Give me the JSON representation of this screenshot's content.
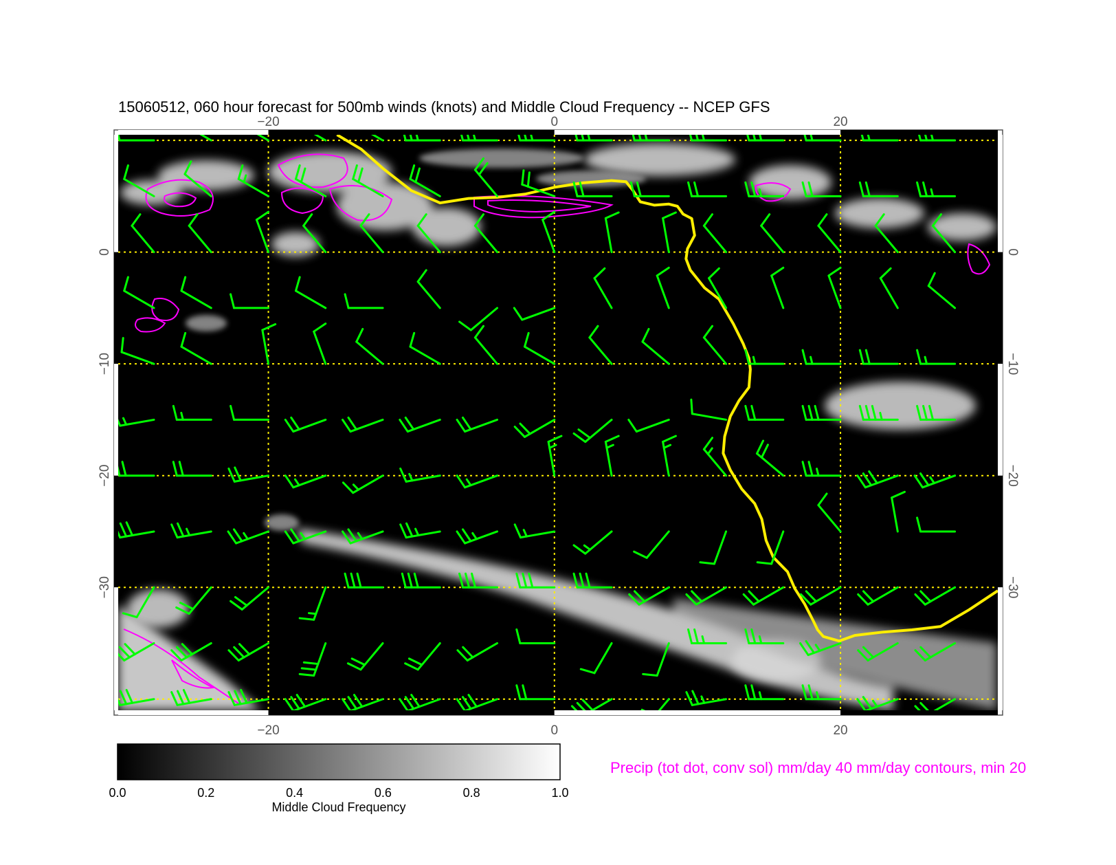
{
  "map": {
    "title": "15060512, 060 hour forecast for 500mb winds (knots) and Middle Cloud Frequency -- NCEP GFS",
    "lon_ticks": [
      "−20",
      "0",
      "20"
    ],
    "lat_ticks": [
      "0",
      "−10",
      "−20",
      "−30"
    ],
    "lon_range": [
      -30.5,
      31
    ],
    "lat_range": [
      -41,
      10.5
    ],
    "grid_lons": [
      -20,
      0,
      20
    ],
    "grid_lats": [
      10,
      0,
      -10,
      -20,
      -30,
      -40
    ],
    "colors": {
      "background": "#000000",
      "wind_barbs": "#00ff00",
      "precip_contours": "#ff00ff",
      "coastline": "#ffee00",
      "grid": "#ffee00"
    }
  },
  "colorbar": {
    "label": "Middle Cloud Frequency",
    "ticks": [
      "0.0",
      "0.2",
      "0.4",
      "0.6",
      "0.8",
      "1.0"
    ],
    "range": [
      0,
      1
    ]
  },
  "precip_note": {
    "text": "Precip (tot dot, conv sol) mm/day 40 mm/day contours, min 20",
    "color": "#ff00ff"
  },
  "coastline_points": [
    [
      -15.2,
      10.5
    ],
    [
      -13.5,
      9.2
    ],
    [
      -12,
      7.5
    ],
    [
      -10,
      5.5
    ],
    [
      -8,
      4.4
    ],
    [
      -6,
      4.8
    ],
    [
      -4,
      4.9
    ],
    [
      -2,
      5.2
    ],
    [
      0,
      5.8
    ],
    [
      2,
      6.2
    ],
    [
      4,
      6.4
    ],
    [
      5,
      6.3
    ],
    [
      5.5,
      5.5
    ],
    [
      6,
      4.5
    ],
    [
      7,
      4.2
    ],
    [
      8,
      4.3
    ],
    [
      8.6,
      4.1
    ],
    [
      9,
      3.4
    ],
    [
      9.6,
      3.0
    ],
    [
      9.8,
      1.5
    ],
    [
      9.3,
      0.3
    ],
    [
      9.2,
      -0.6
    ],
    [
      9.5,
      -1.6
    ],
    [
      10.5,
      -3.2
    ],
    [
      11.5,
      -4.2
    ],
    [
      12.5,
      -6.4
    ],
    [
      13.2,
      -8.2
    ],
    [
      13.6,
      -9.5
    ],
    [
      13.7,
      -10.5
    ],
    [
      13.6,
      -12.1
    ],
    [
      12.9,
      -13.3
    ],
    [
      12.3,
      -14.7
    ],
    [
      11.9,
      -16.5
    ],
    [
      11.8,
      -18
    ],
    [
      12.3,
      -19.5
    ],
    [
      13.1,
      -21.2
    ],
    [
      14.0,
      -22.5
    ],
    [
      14.5,
      -23.9
    ],
    [
      14.8,
      -25.8
    ],
    [
      15.3,
      -27.3
    ],
    [
      16.3,
      -28.6
    ],
    [
      16.8,
      -30.1
    ],
    [
      17.5,
      -31.5
    ],
    [
      18.1,
      -33
    ],
    [
      18.4,
      -33.8
    ],
    [
      18.8,
      -34.4
    ],
    [
      19.9,
      -34.8
    ],
    [
      21,
      -34.3
    ],
    [
      23,
      -34
    ],
    [
      25,
      -33.8
    ],
    [
      27,
      -33.5
    ],
    [
      29,
      -32
    ],
    [
      31,
      -30.3
    ]
  ],
  "wind_barbs": [
    [
      -28,
      10,
      10,
      270
    ],
    [
      -24,
      10,
      10,
      300
    ],
    [
      -20,
      10,
      10,
      300
    ],
    [
      -16,
      10,
      15,
      300
    ],
    [
      -12,
      10,
      15,
      300
    ],
    [
      -8,
      10,
      25,
      270
    ],
    [
      -4,
      10,
      30,
      270
    ],
    [
      0,
      10,
      25,
      270
    ],
    [
      4,
      10,
      25,
      270
    ],
    [
      8,
      10,
      30,
      270
    ],
    [
      12,
      10,
      30,
      270
    ],
    [
      16,
      10,
      25,
      270
    ],
    [
      20,
      10,
      20,
      270
    ],
    [
      24,
      10,
      20,
      270
    ],
    [
      28,
      10,
      25,
      270
    ],
    [
      -28,
      5,
      10,
      300
    ],
    [
      -24,
      5,
      10,
      310
    ],
    [
      -20,
      5,
      15,
      300
    ],
    [
      -16,
      5,
      20,
      300
    ],
    [
      -12,
      5,
      20,
      300
    ],
    [
      -8,
      5,
      20,
      300
    ],
    [
      -4,
      5,
      20,
      320
    ],
    [
      0,
      5,
      20,
      290
    ],
    [
      4,
      5,
      20,
      270
    ],
    [
      8,
      5,
      20,
      270
    ],
    [
      12,
      5,
      20,
      270
    ],
    [
      16,
      5,
      25,
      270
    ],
    [
      20,
      5,
      20,
      270
    ],
    [
      24,
      5,
      20,
      270
    ],
    [
      28,
      5,
      25,
      270
    ],
    [
      -28,
      0,
      10,
      320
    ],
    [
      -24,
      0,
      10,
      320
    ],
    [
      -20,
      0,
      10,
      340
    ],
    [
      -16,
      0,
      10,
      320
    ],
    [
      -12,
      0,
      10,
      320
    ],
    [
      -8,
      0,
      10,
      320
    ],
    [
      -4,
      0,
      10,
      320
    ],
    [
      0,
      0,
      10,
      340
    ],
    [
      4,
      0,
      10,
      350
    ],
    [
      8,
      0,
      10,
      350
    ],
    [
      12,
      0,
      10,
      320
    ],
    [
      16,
      0,
      10,
      320
    ],
    [
      20,
      0,
      10,
      320
    ],
    [
      24,
      0,
      10,
      320
    ],
    [
      28,
      0,
      10,
      320
    ],
    [
      -28,
      -5,
      10,
      300
    ],
    [
      -24,
      -5,
      10,
      300
    ],
    [
      -20,
      -5,
      10,
      270
    ],
    [
      -16,
      -5,
      10,
      300
    ],
    [
      -12,
      -5,
      10,
      270
    ],
    [
      -8,
      -5,
      10,
      320
    ],
    [
      -4,
      -5,
      10,
      230
    ],
    [
      0,
      -5,
      10,
      250
    ],
    [
      4,
      -5,
      10,
      330
    ],
    [
      8,
      -5,
      10,
      340
    ],
    [
      12,
      -5,
      10,
      330
    ],
    [
      16,
      -5,
      10,
      340
    ],
    [
      20,
      -5,
      10,
      340
    ],
    [
      24,
      -5,
      10,
      330
    ],
    [
      28,
      -5,
      10,
      310
    ],
    [
      -28,
      -10,
      10,
      290
    ],
    [
      -24,
      -10,
      10,
      300
    ],
    [
      -20,
      -10,
      10,
      350
    ],
    [
      -16,
      -10,
      10,
      340
    ],
    [
      -12,
      -10,
      10,
      310
    ],
    [
      -8,
      -10,
      10,
      300
    ],
    [
      -4,
      -10,
      10,
      320
    ],
    [
      0,
      -10,
      10,
      300
    ],
    [
      4,
      -10,
      10,
      320
    ],
    [
      8,
      -10,
      10,
      310
    ],
    [
      12,
      -10,
      10,
      320
    ],
    [
      16,
      -10,
      15,
      270
    ],
    [
      20,
      -10,
      15,
      270
    ],
    [
      24,
      -10,
      20,
      270
    ],
    [
      28,
      -10,
      15,
      270
    ],
    [
      -28,
      -15,
      15,
      260
    ],
    [
      -24,
      -15,
      15,
      270
    ],
    [
      -20,
      -15,
      10,
      270
    ],
    [
      -16,
      -15,
      20,
      250
    ],
    [
      -12,
      -15,
      20,
      250
    ],
    [
      -8,
      -15,
      20,
      250
    ],
    [
      -4,
      -15,
      20,
      250
    ],
    [
      0,
      -15,
      20,
      240
    ],
    [
      4,
      -15,
      20,
      230
    ],
    [
      8,
      -15,
      10,
      250
    ],
    [
      12,
      -15,
      10,
      280
    ],
    [
      16,
      -15,
      20,
      270
    ],
    [
      20,
      -15,
      30,
      270
    ],
    [
      24,
      -15,
      35,
      270
    ],
    [
      28,
      -15,
      30,
      270
    ],
    [
      -28,
      -20,
      20,
      270
    ],
    [
      -24,
      -20,
      20,
      270
    ],
    [
      -20,
      -20,
      20,
      260
    ],
    [
      -16,
      -20,
      15,
      250
    ],
    [
      -12,
      -20,
      15,
      240
    ],
    [
      -8,
      -20,
      15,
      260
    ],
    [
      -4,
      -20,
      15,
      250
    ],
    [
      0,
      -20,
      15,
      350
    ],
    [
      4,
      -20,
      15,
      350
    ],
    [
      8,
      -20,
      15,
      350
    ],
    [
      12,
      -20,
      15,
      320
    ],
    [
      16,
      -20,
      20,
      310
    ],
    [
      20,
      -20,
      25,
      270
    ],
    [
      24,
      -20,
      30,
      250
    ],
    [
      28,
      -20,
      25,
      250
    ],
    [
      -28,
      -25,
      30,
      260
    ],
    [
      -24,
      -25,
      25,
      260
    ],
    [
      -20,
      -25,
      25,
      250
    ],
    [
      -16,
      -25,
      25,
      250
    ],
    [
      -12,
      -25,
      25,
      250
    ],
    [
      -8,
      -25,
      25,
      260
    ],
    [
      -4,
      -25,
      25,
      250
    ],
    [
      0,
      -25,
      15,
      260
    ],
    [
      4,
      -25,
      15,
      230
    ],
    [
      8,
      -25,
      10,
      220
    ],
    [
      12,
      -25,
      10,
      200
    ],
    [
      16,
      -25,
      10,
      200
    ],
    [
      20,
      -25,
      10,
      320
    ],
    [
      24,
      -25,
      10,
      350
    ],
    [
      28,
      -25,
      10,
      270
    ],
    [
      -28,
      -30,
      10,
      210
    ],
    [
      -24,
      -30,
      20,
      220
    ],
    [
      -20,
      -30,
      20,
      230
    ],
    [
      -16,
      -30,
      15,
      200
    ],
    [
      -12,
      -30,
      30,
      270
    ],
    [
      -8,
      -30,
      30,
      270
    ],
    [
      -4,
      -30,
      30,
      270
    ],
    [
      0,
      -30,
      30,
      270
    ],
    [
      4,
      -30,
      30,
      270
    ],
    [
      8,
      -30,
      20,
      240
    ],
    [
      12,
      -30,
      20,
      240
    ],
    [
      16,
      -30,
      20,
      240
    ],
    [
      20,
      -30,
      20,
      240
    ],
    [
      24,
      -30,
      20,
      240
    ],
    [
      28,
      -30,
      20,
      240
    ],
    [
      -28,
      -35,
      30,
      240
    ],
    [
      -24,
      -35,
      30,
      240
    ],
    [
      -20,
      -35,
      30,
      240
    ],
    [
      -16,
      -35,
      30,
      200
    ],
    [
      -12,
      -35,
      20,
      220
    ],
    [
      -8,
      -35,
      20,
      220
    ],
    [
      -4,
      -35,
      20,
      240
    ],
    [
      0,
      -35,
      10,
      270
    ],
    [
      4,
      -35,
      10,
      210
    ],
    [
      8,
      -35,
      10,
      200
    ],
    [
      12,
      -35,
      25,
      270
    ],
    [
      16,
      -35,
      25,
      270
    ],
    [
      20,
      -35,
      25,
      250
    ],
    [
      24,
      -35,
      20,
      240
    ],
    [
      28,
      -35,
      20,
      240
    ],
    [
      -28,
      -40,
      30,
      260
    ],
    [
      -24,
      -40,
      30,
      260
    ],
    [
      -20,
      -40,
      30,
      260
    ],
    [
      -16,
      -40,
      30,
      250
    ],
    [
      -12,
      -40,
      30,
      250
    ],
    [
      -8,
      -40,
      30,
      250
    ],
    [
      -4,
      -40,
      30,
      250
    ],
    [
      0,
      -40,
      20,
      270
    ],
    [
      4,
      -40,
      30,
      240
    ],
    [
      8,
      -40,
      30,
      220
    ],
    [
      12,
      -40,
      25,
      260
    ],
    [
      16,
      -40,
      25,
      270
    ],
    [
      20,
      -40,
      25,
      270
    ],
    [
      24,
      -40,
      25,
      250
    ],
    [
      28,
      -40,
      20,
      240
    ]
  ]
}
